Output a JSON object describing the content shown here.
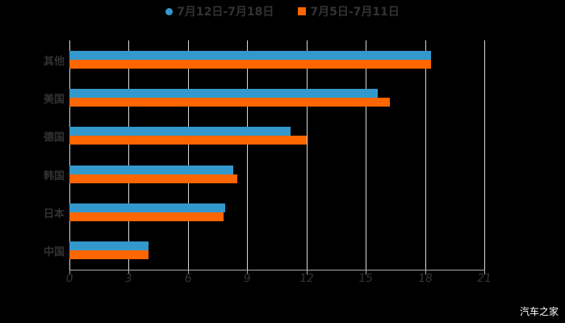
{
  "legend": [
    {
      "label": "7月12日-7月18日",
      "color": "#3399cc",
      "shape": "circle"
    },
    {
      "label": "7月5日-7月11日",
      "color": "#ff6600",
      "shape": "square"
    }
  ],
  "watermark": "汽车之家",
  "chart_data": {
    "type": "bar",
    "orientation": "horizontal",
    "title": "",
    "xlabel": "",
    "ylabel": "",
    "categories": [
      "其他",
      "美国",
      "德国",
      "韩国",
      "日本",
      "中国"
    ],
    "series": [
      {
        "name": "7月12日-7月18日",
        "color": "#3399cc",
        "values": [
          18.3,
          15.6,
          11.2,
          8.3,
          7.9,
          4.0
        ]
      },
      {
        "name": "7月5日-7月11日",
        "color": "#ff6600",
        "values": [
          18.3,
          16.2,
          12.0,
          8.5,
          7.8,
          4.0
        ]
      }
    ],
    "xlim": [
      0,
      21
    ],
    "xticks": [
      "0",
      "3",
      "6",
      "9",
      "12",
      "15",
      "18",
      "21"
    ],
    "grid": true,
    "legend_position": "top"
  }
}
